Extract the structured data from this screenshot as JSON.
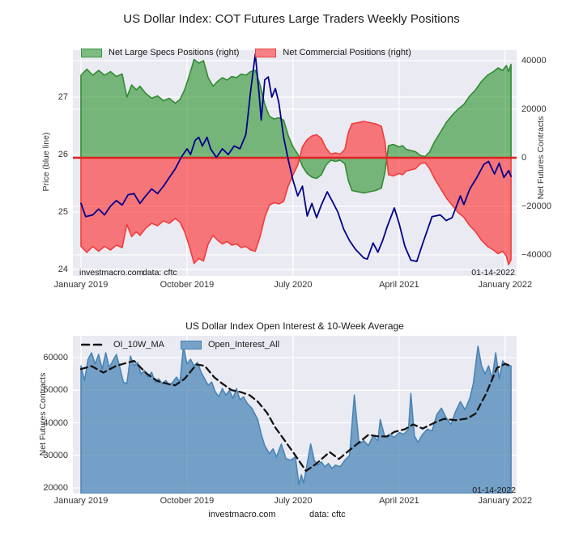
{
  "chart_data": [
    {
      "id": "cot-positions",
      "type": "area",
      "title": "US Dollar Index: COT Futures Large Traders Weekly Positions",
      "ylabel_left": "Price (blue line)",
      "ylabel_right": "Net Futures Contracts",
      "ylim_left": [
        23.9,
        27.8
      ],
      "ylim_right": [
        -48700,
        44300
      ],
      "grid": true,
      "legend_position": "upper left",
      "x_ticks": [
        {
          "m": 0,
          "label": "January 2019"
        },
        {
          "m": 9,
          "label": "October 2019"
        },
        {
          "m": 18,
          "label": "July 2020"
        },
        {
          "m": 27,
          "label": "April 2021"
        },
        {
          "m": 36,
          "label": "January 2022"
        }
      ],
      "y_ticks_left": [
        {
          "v": 27,
          "label": "27"
        },
        {
          "v": 26,
          "label": "26"
        },
        {
          "v": 25,
          "label": "25"
        },
        {
          "v": 24,
          "label": "24"
        }
      ],
      "y_ticks_right": [
        {
          "v": 40000,
          "label": "40000"
        },
        {
          "v": 20000,
          "label": "20000"
        },
        {
          "v": 0,
          "label": "0"
        },
        {
          "v": -20000,
          "label": "−20000"
        },
        {
          "v": -40000,
          "label": "−40000"
        }
      ],
      "legend": [
        {
          "label": "Net Large Specs Positions (right)",
          "swatch": "specs"
        },
        {
          "label": "Net Commercial Positions (right)",
          "swatch": "comm"
        }
      ],
      "annotations": {
        "source": "investmacro.com",
        "data_source": "data: cftc",
        "date": "01-14-2022"
      },
      "series": [
        {
          "name": "Net Large Specs Positions",
          "axis": "right",
          "kind": "area",
          "color_key": "specs",
          "x": [
            0,
            0.5,
            1,
            1.5,
            2,
            2.5,
            3,
            3.5,
            3.9,
            4.3,
            4.7,
            5,
            5.5,
            6,
            6.5,
            7,
            7.5,
            8,
            8.4,
            8.8,
            9.2,
            9.6,
            10,
            10.4,
            10.8,
            11.2,
            11.6,
            12,
            12.4,
            12.8,
            13.2,
            13.6,
            14,
            14.4,
            14.8,
            15.2,
            15.6,
            16,
            16.4,
            16.8,
            17.2,
            17.6,
            18,
            18.4,
            18.8,
            19.2,
            19.6,
            20,
            20.4,
            20.8,
            21.2,
            21.6,
            22,
            22.4,
            22.7,
            23,
            23.5,
            24,
            24.5,
            25,
            25.5,
            25.8,
            26.1,
            26.5,
            27,
            27.3,
            27.6,
            28,
            28.4,
            28.8,
            29.2,
            29.6,
            30,
            30.5,
            31,
            31.5,
            32,
            32.5,
            33,
            33.5,
            34,
            34.5,
            35,
            35.4,
            35.8,
            36.1,
            36.3,
            36.5
          ],
          "y": [
            34000,
            36500,
            34000,
            36000,
            34000,
            35500,
            33500,
            34500,
            25000,
            30000,
            28000,
            29500,
            26500,
            24500,
            25500,
            23500,
            24500,
            22500,
            24000,
            28000,
            34000,
            40500,
            39000,
            40000,
            33000,
            29500,
            31500,
            33000,
            32000,
            33500,
            33000,
            34500,
            34000,
            35500,
            36000,
            30000,
            22000,
            17000,
            16000,
            16500,
            15500,
            9000,
            4500,
            1500,
            -3500,
            -6500,
            -8000,
            -8500,
            -7000,
            -3000,
            -1000,
            -1500,
            -1000,
            -2500,
            -9500,
            -13500,
            -14000,
            -14500,
            -14000,
            -13500,
            -12500,
            -6000,
            5000,
            5500,
            4500,
            5000,
            3500,
            3000,
            2500,
            1000,
            500,
            2500,
            6500,
            10500,
            14500,
            17500,
            20000,
            22000,
            25500,
            28000,
            31500,
            34000,
            35500,
            37000,
            36000,
            38000,
            35500,
            38500
          ]
        },
        {
          "name": "Net Commercial Positions",
          "axis": "right",
          "kind": "area",
          "color_key": "comm",
          "x": [
            0,
            0.5,
            1,
            1.5,
            2,
            2.5,
            3,
            3.5,
            3.9,
            4.3,
            4.7,
            5,
            5.5,
            6,
            6.5,
            7,
            7.5,
            8,
            8.4,
            8.8,
            9.2,
            9.6,
            10,
            10.4,
            10.8,
            11.2,
            11.6,
            12,
            12.4,
            12.8,
            13.2,
            13.6,
            14,
            14.4,
            14.8,
            15.2,
            15.6,
            16,
            16.4,
            16.8,
            17.2,
            17.6,
            18,
            18.4,
            18.8,
            19.2,
            19.6,
            20,
            20.4,
            20.8,
            21.2,
            21.6,
            22,
            22.4,
            22.7,
            23,
            23.5,
            24,
            24.5,
            25,
            25.5,
            25.8,
            26.1,
            26.5,
            27,
            27.3,
            27.6,
            28,
            28.4,
            28.8,
            29.2,
            29.6,
            30,
            30.5,
            31,
            31.5,
            32,
            32.5,
            33,
            33.5,
            34,
            34.5,
            35,
            35.4,
            35.8,
            36.1,
            36.3,
            36.5
          ],
          "y": [
            -36500,
            -39000,
            -36500,
            -38500,
            -36500,
            -38000,
            -36000,
            -37000,
            -27500,
            -32500,
            -30500,
            -32000,
            -29000,
            -27000,
            -28000,
            -26000,
            -27000,
            -25000,
            -26500,
            -30500,
            -36500,
            -43500,
            -41500,
            -42500,
            -35500,
            -32000,
            -34000,
            -35500,
            -34500,
            -36000,
            -35500,
            -37000,
            -36500,
            -38000,
            -38500,
            -32500,
            -24500,
            -19500,
            -18500,
            -19000,
            -18000,
            -11500,
            -7000,
            -3000,
            4500,
            7500,
            9000,
            9500,
            8000,
            4000,
            1500,
            2000,
            1500,
            3500,
            10500,
            14000,
            14500,
            15000,
            14500,
            14000,
            13000,
            6500,
            -7000,
            -7500,
            -6500,
            -7000,
            -5500,
            -5000,
            -4500,
            -2500,
            -2000,
            -4500,
            -8500,
            -12500,
            -16500,
            -19500,
            -22500,
            -24500,
            -28000,
            -30500,
            -34000,
            -36500,
            -38000,
            -39500,
            -38500,
            -40500,
            -44000,
            -42000
          ]
        },
        {
          "name": "Price",
          "axis": "left",
          "kind": "line",
          "color_key": "price",
          "x": [
            0,
            0.4,
            1,
            1.5,
            2,
            2.5,
            3,
            3.5,
            4,
            4.5,
            5,
            5.5,
            6,
            6.5,
            7,
            7.5,
            8,
            8.5,
            9,
            9.3,
            9.7,
            10,
            10.3,
            10.7,
            11,
            11.5,
            12,
            12.5,
            13,
            13.5,
            14,
            14.4,
            14.8,
            15.1,
            15.3,
            15.6,
            15.9,
            16.2,
            16.5,
            16.8,
            17.2,
            17.6,
            18,
            18.4,
            18.8,
            19.2,
            19.6,
            20,
            20.4,
            20.9,
            21.3,
            21.8,
            22.3,
            22.8,
            23.3,
            24,
            24.3,
            24.8,
            25.2,
            25.6,
            26,
            26.6,
            27,
            27.5,
            28,
            28.5,
            29,
            29.8,
            30.5,
            31,
            31.5,
            32.2,
            32.5,
            33,
            33.6,
            34.2,
            34.6,
            35.1,
            35.5,
            35.9,
            36.3,
            36.5
          ],
          "y": [
            25.15,
            24.92,
            24.95,
            25.05,
            24.95,
            25.1,
            25.2,
            25.12,
            25.3,
            25.32,
            25.15,
            25.28,
            25.4,
            25.32,
            25.45,
            25.6,
            25.75,
            25.95,
            26.1,
            26.0,
            26.25,
            26.3,
            26.15,
            26.3,
            26.1,
            25.95,
            26.1,
            26.0,
            26.15,
            26.1,
            26.35,
            27.1,
            27.75,
            27.1,
            26.6,
            27.3,
            27.35,
            27.0,
            27.15,
            26.9,
            26.3,
            25.9,
            25.55,
            25.28,
            25.45,
            24.93,
            25.15,
            24.9,
            25.12,
            25.35,
            25.2,
            25.0,
            24.7,
            24.5,
            24.35,
            24.2,
            24.18,
            24.46,
            24.3,
            24.5,
            24.75,
            25.07,
            24.8,
            24.4,
            24.16,
            24.14,
            24.45,
            24.92,
            24.95,
            24.85,
            24.9,
            25.28,
            25.13,
            25.4,
            25.6,
            25.83,
            25.88,
            25.66,
            25.85,
            25.6,
            25.72,
            25.62
          ]
        }
      ]
    },
    {
      "id": "open-interest",
      "type": "area",
      "title": "US Dollar Index Open Interest & 10-Week Average",
      "ylabel_left": "Net Futures Contracts",
      "ylim": [
        18300,
        66700
      ],
      "grid": true,
      "legend_position": "upper left",
      "x_ticks": [
        {
          "m": 0,
          "label": "January 2019"
        },
        {
          "m": 9,
          "label": "October 2019"
        },
        {
          "m": 18,
          "label": "July 2020"
        },
        {
          "m": 27,
          "label": "April 2021"
        },
        {
          "m": 36,
          "label": "January 2022"
        }
      ],
      "y_ticks_left": [
        {
          "v": 60000,
          "label": "60000"
        },
        {
          "v": 50000,
          "label": "50000"
        },
        {
          "v": 40000,
          "label": "40000"
        },
        {
          "v": 30000,
          "label": "30000"
        },
        {
          "v": 20000,
          "label": "20000"
        }
      ],
      "legend": [
        {
          "label": "OI_10W_MA",
          "swatch": "ma"
        },
        {
          "label": "Open_Interest_All",
          "swatch": "oi"
        }
      ],
      "annotations": {
        "date": "01-14-2022"
      },
      "footer": {
        "source": "investmacro.com",
        "data_source": "data: cftc"
      },
      "series": [
        {
          "name": "Open_Interest_All",
          "kind": "area",
          "color_key": "oi",
          "x": [
            0,
            0.3,
            0.6,
            0.9,
            1.2,
            1.5,
            1.8,
            2.1,
            2.4,
            2.7,
            3,
            3.3,
            3.6,
            3.9,
            4.2,
            4.5,
            4.8,
            5.1,
            5.4,
            5.7,
            6,
            6.3,
            6.6,
            6.9,
            7.2,
            7.5,
            7.8,
            8.1,
            8.4,
            8.7,
            9,
            9.3,
            9.6,
            9.9,
            10.2,
            10.5,
            10.8,
            11.1,
            11.4,
            11.7,
            12,
            12.3,
            12.6,
            12.9,
            13.2,
            13.5,
            13.8,
            14.1,
            14.5,
            15,
            15.3,
            15.6,
            16,
            16.3,
            16.6,
            17,
            17.4,
            17.8,
            18.2,
            18.5,
            18.7,
            18.9,
            19.2,
            19.5,
            19.8,
            20.1,
            20.4,
            20.7,
            21,
            21.3,
            21.6,
            22,
            22.4,
            22.8,
            23.2,
            23.6,
            24,
            24.4,
            24.8,
            25.2,
            25.4,
            25.8,
            26.2,
            26.6,
            27,
            27.4,
            27.8,
            28,
            28.3,
            28.6,
            29,
            29.4,
            29.8,
            30.2,
            30.6,
            31,
            31.4,
            31.8,
            32.2,
            32.6,
            33,
            33.3,
            33.7,
            34,
            34.3,
            34.6,
            34.9,
            35.2,
            35.5,
            35.8,
            36.1,
            36.5
          ],
          "y": [
            57500,
            53000,
            59500,
            61500,
            58000,
            61000,
            56500,
            61500,
            57000,
            59000,
            61000,
            57000,
            52500,
            52000,
            60500,
            57500,
            58500,
            55000,
            56000,
            54000,
            55500,
            52500,
            53500,
            52000,
            53000,
            51500,
            52500,
            54000,
            52500,
            63500,
            58000,
            59500,
            57500,
            58500,
            55500,
            53500,
            51500,
            52500,
            49500,
            48000,
            50500,
            48500,
            50000,
            47500,
            50500,
            47000,
            48000,
            46000,
            44500,
            41000,
            36500,
            33000,
            30500,
            32000,
            29500,
            33500,
            29000,
            28500,
            29500,
            21000,
            24000,
            21500,
            27500,
            33500,
            28500,
            27000,
            28000,
            26500,
            27500,
            26000,
            27000,
            26500,
            28500,
            30000,
            48500,
            33500,
            34500,
            33000,
            36000,
            34500,
            41000,
            35500,
            36500,
            35500,
            37000,
            36500,
            38000,
            49000,
            36000,
            34000,
            36500,
            38000,
            37500,
            42500,
            44500,
            41500,
            39500,
            43500,
            46500,
            44000,
            47500,
            52000,
            63500,
            57500,
            55000,
            57500,
            53500,
            61500,
            53500,
            59000,
            57500,
            57500
          ]
        },
        {
          "name": "OI_10W_MA",
          "kind": "dashed-line",
          "color_key": "ma",
          "x": [
            0,
            0.9,
            1.9,
            3,
            4.5,
            5.6,
            6.5,
            7.3,
            8,
            8.8,
            9.8,
            10.5,
            11.3,
            12,
            12.8,
            13.5,
            14.3,
            15,
            15.8,
            16.5,
            17.3,
            18,
            19.1,
            20,
            21.1,
            21.9,
            23,
            24.4,
            25.2,
            26,
            26.6,
            27.5,
            28.2,
            29,
            30,
            30.8,
            31.8,
            32.8,
            33.5,
            34.4,
            35.3,
            36,
            36.5
          ],
          "y": [
            56500,
            57400,
            55400,
            57500,
            59000,
            55000,
            52800,
            52000,
            51500,
            53500,
            57900,
            57500,
            54000,
            52000,
            50000,
            49500,
            48500,
            46500,
            43000,
            38500,
            34500,
            31000,
            25200,
            27500,
            31000,
            28900,
            32200,
            36300,
            35800,
            35800,
            37200,
            38000,
            39500,
            38200,
            40000,
            41200,
            40800,
            41300,
            42800,
            49000,
            56800,
            58100,
            57400
          ]
        }
      ]
    }
  ],
  "colors": {
    "plot_bg": "#eaeaf2",
    "grid": "#ffffff",
    "specs_fill": "rgba(0,128,0,0.5)",
    "specs_edge": "#338a33",
    "comm_fill": "rgba(255,0,0,0.5)",
    "comm_edge": "#f03c3c",
    "zero_line": "#dd2323",
    "price": "#00008b",
    "oi_fill": "rgba(70,130,180,0.72)",
    "oi_edge": "#4682b4",
    "ma": "#141414"
  }
}
